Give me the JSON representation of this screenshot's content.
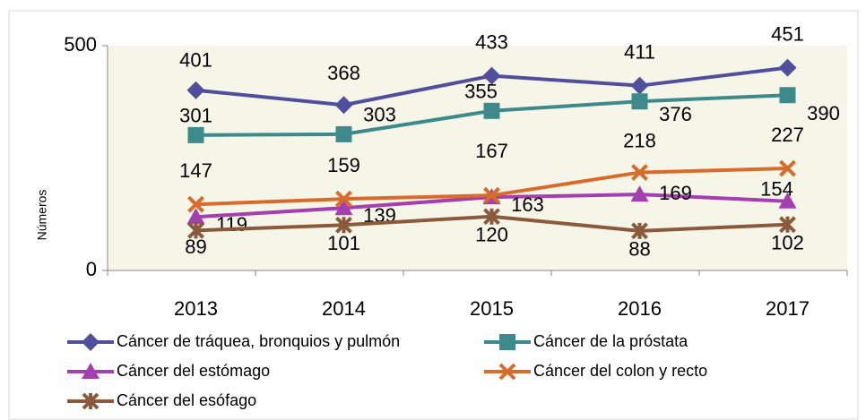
{
  "chart_data": {
    "type": "line",
    "y_label": "Números",
    "categories": [
      "2013",
      "2014",
      "2015",
      "2016",
      "2017"
    ],
    "series": [
      {
        "name": "Cáncer de tráquea, bronquios y pulmón",
        "color": "#4f4f9e",
        "marker": "diamond",
        "values": [
          401,
          368,
          433,
          411,
          451
        ]
      },
      {
        "name": "Cáncer de la próstata",
        "color": "#3d8a8c",
        "marker": "square",
        "values": [
          301,
          303,
          355,
          376,
          390
        ]
      },
      {
        "name": "Cáncer del estómago",
        "color": "#a43fb0",
        "marker": "triangle",
        "values": [
          119,
          139,
          163,
          169,
          154
        ]
      },
      {
        "name": "Cáncer del colon y recto",
        "color": "#d86b2a",
        "marker": "x",
        "values": [
          147,
          159,
          167,
          218,
          227
        ]
      },
      {
        "name": "Cáncer del esófago",
        "color": "#8b5a3c",
        "marker": "star",
        "values": [
          89,
          101,
          120,
          88,
          102
        ]
      }
    ],
    "ylim": [
      0,
      500
    ],
    "yticks": [
      0,
      500
    ],
    "legend": "bottom"
  }
}
